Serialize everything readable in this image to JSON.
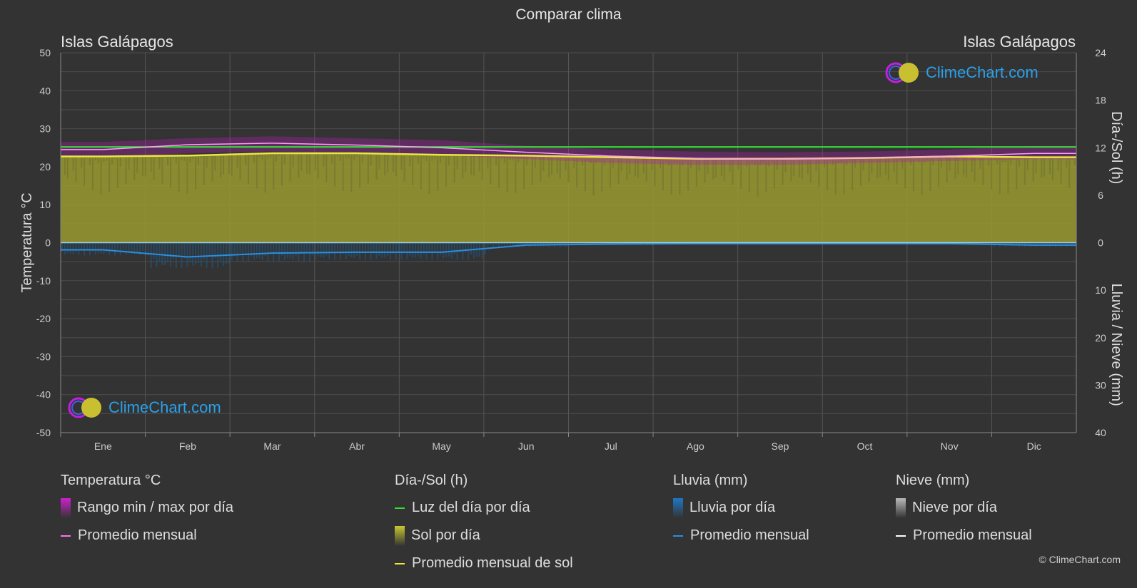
{
  "page": {
    "title": "Comparar clima",
    "location_left": "Islas Galápagos",
    "location_right": "Islas Galápagos",
    "copyright": "© ClimeChart.com",
    "logo_text": "ClimeChart.com"
  },
  "colors": {
    "background": "#333333",
    "temp_range": "#c020c0",
    "temp_avg": "#ff6ef5",
    "daylight": "#33dd33",
    "sunshine_fill": "#9a9a30",
    "sunshine_avg": "#e8e840",
    "rain": "#1e78c8",
    "rain_avg": "#2a8fe0",
    "snow_avg": "#ffffff"
  },
  "chart_data": {
    "type": "area",
    "months": [
      "Ene",
      "Feb",
      "Mar",
      "Abr",
      "May",
      "Jun",
      "Jul",
      "Ago",
      "Sep",
      "Oct",
      "Nov",
      "Dic"
    ],
    "y_left": {
      "label": "Temperatura °C",
      "min": -50,
      "max": 50,
      "ticks": [
        50,
        40,
        30,
        20,
        10,
        0,
        -10,
        -20,
        -30,
        -40,
        -50
      ]
    },
    "y_right_top": {
      "label": "Día-/Sol (h)",
      "min": 0,
      "max": 24,
      "ticks": [
        24,
        18,
        12,
        6,
        0
      ]
    },
    "y_right_bottom": {
      "label": "Lluvia / Nieve (mm)",
      "min": 0,
      "max": 40,
      "ticks": [
        0,
        10,
        20,
        30,
        40
      ]
    },
    "grid": true,
    "series": [
      {
        "name": "Promedio mensual",
        "group": "temperature",
        "unit": "°C",
        "values": [
          24.5,
          25.8,
          26.2,
          25.7,
          25.0,
          23.8,
          22.8,
          22.2,
          22.0,
          22.3,
          22.8,
          23.5
        ]
      },
      {
        "name": "Rango min / max por día",
        "group": "temperature",
        "unit": "°C",
        "min": [
          22.5,
          23.5,
          24.0,
          23.5,
          23.0,
          22.0,
          21.0,
          20.5,
          20.5,
          21.0,
          21.5,
          22.0
        ],
        "max": [
          26.5,
          27.5,
          28.0,
          27.5,
          27.0,
          25.5,
          24.5,
          24.0,
          23.8,
          24.0,
          24.5,
          25.5
        ]
      },
      {
        "name": "Luz del día por día",
        "group": "sun",
        "unit": "h",
        "values": [
          12.1,
          12.1,
          12.1,
          12.1,
          12.1,
          12.1,
          12.1,
          12.1,
          12.1,
          12.1,
          12.1,
          12.1
        ]
      },
      {
        "name": "Sol por día",
        "group": "sun",
        "unit": "h",
        "values": [
          10.9,
          11.0,
          11.3,
          11.3,
          11.1,
          11.0,
          10.8,
          10.6,
          10.6,
          10.7,
          10.9,
          10.8
        ]
      },
      {
        "name": "Promedio mensual de sol",
        "group": "sun",
        "unit": "h",
        "values": [
          10.9,
          11.0,
          11.3,
          11.3,
          11.1,
          11.0,
          10.8,
          10.6,
          10.6,
          10.7,
          10.9,
          10.8
        ]
      },
      {
        "name": "Promedio mensual",
        "group": "rain",
        "unit": "mm",
        "values": [
          1.5,
          3.0,
          2.2,
          2.0,
          2.0,
          0.5,
          0.3,
          0.2,
          0.2,
          0.2,
          0.2,
          0.5
        ]
      }
    ]
  },
  "legend": {
    "groups": [
      {
        "heading": "Temperatura °C",
        "items": [
          {
            "label": "Rango min / max por día",
            "swatch": "box",
            "color": "#d020d0"
          },
          {
            "label": "Promedio mensual",
            "swatch": "line",
            "color": "#ff6ef5"
          }
        ]
      },
      {
        "heading": "Día-/Sol (h)",
        "items": [
          {
            "label": "Luz del día por día",
            "swatch": "line",
            "color": "#33dd33"
          },
          {
            "label": "Sol por día",
            "swatch": "box",
            "color": "#c8c832"
          },
          {
            "label": "Promedio mensual de sol",
            "swatch": "line",
            "color": "#e8e840"
          }
        ]
      },
      {
        "heading": "Lluvia (mm)",
        "items": [
          {
            "label": "Lluvia por día",
            "swatch": "box",
            "color": "#1e78c8"
          },
          {
            "label": "Promedio mensual",
            "swatch": "line",
            "color": "#2a8fe0"
          }
        ]
      },
      {
        "heading": "Nieve (mm)",
        "items": [
          {
            "label": "Nieve por día",
            "swatch": "box",
            "color": "#bbbbbb"
          },
          {
            "label": "Promedio mensual",
            "swatch": "line",
            "color": "#ffffff"
          }
        ]
      }
    ]
  }
}
